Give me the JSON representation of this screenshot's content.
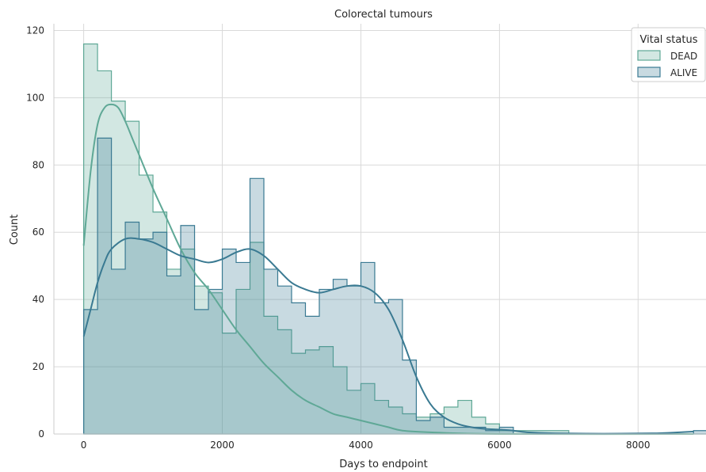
{
  "chart_data": {
    "type": "histogram",
    "title": "Colorectal tumours",
    "xlabel": "Days to endpoint",
    "ylabel": "Count",
    "xlim": [
      -430,
      8980
    ],
    "ylim": [
      0,
      122
    ],
    "xticks": [
      0,
      2000,
      4000,
      6000,
      8000
    ],
    "yticks": [
      0,
      20,
      40,
      60,
      80,
      100,
      120
    ],
    "bin_width": 200,
    "x_start": 0,
    "grid": true,
    "legend": {
      "title": "Vital status",
      "placement": "top-right"
    },
    "series": [
      {
        "name": "DEAD",
        "color": "#5fa896",
        "values": [
          116,
          108,
          99,
          93,
          77,
          66,
          49,
          55,
          44,
          42,
          30,
          43,
          57,
          35,
          31,
          24,
          25,
          26,
          20,
          13,
          15,
          10,
          8,
          6,
          5,
          6,
          8,
          10,
          5,
          3,
          1,
          1,
          1,
          1,
          1,
          0,
          0,
          0,
          0,
          0,
          0,
          0,
          0,
          0,
          0
        ],
        "kde": [
          [
            0,
            56
          ],
          [
            100,
            78
          ],
          [
            200,
            92
          ],
          [
            300,
            97
          ],
          [
            400,
            98
          ],
          [
            500,
            97
          ],
          [
            600,
            93
          ],
          [
            700,
            88
          ],
          [
            800,
            83
          ],
          [
            1000,
            73
          ],
          [
            1200,
            64
          ],
          [
            1400,
            55
          ],
          [
            1600,
            48
          ],
          [
            1800,
            43
          ],
          [
            2000,
            37
          ],
          [
            2200,
            31
          ],
          [
            2400,
            26
          ],
          [
            2600,
            21
          ],
          [
            2800,
            17
          ],
          [
            3000,
            13
          ],
          [
            3200,
            10
          ],
          [
            3400,
            8
          ],
          [
            3600,
            6
          ],
          [
            3800,
            5
          ],
          [
            4000,
            4
          ],
          [
            4200,
            3
          ],
          [
            4400,
            2
          ],
          [
            4600,
            1
          ],
          [
            5000,
            0.5
          ],
          [
            6000,
            0
          ],
          [
            8800,
            0
          ]
        ]
      },
      {
        "name": "ALIVE",
        "color": "#3a7a92",
        "values": [
          37,
          88,
          49,
          63,
          58,
          60,
          47,
          62,
          37,
          43,
          55,
          51,
          76,
          49,
          44,
          39,
          35,
          43,
          46,
          44,
          51,
          39,
          40,
          22,
          4,
          5,
          2,
          2,
          2,
          1,
          2,
          0,
          0,
          0,
          0,
          0,
          0,
          0,
          0,
          0,
          0,
          0,
          0,
          0,
          1
        ],
        "kde": [
          [
            0,
            29
          ],
          [
            100,
            37
          ],
          [
            200,
            45
          ],
          [
            300,
            51
          ],
          [
            400,
            55
          ],
          [
            600,
            58
          ],
          [
            800,
            58
          ],
          [
            1000,
            57
          ],
          [
            1200,
            55
          ],
          [
            1400,
            53
          ],
          [
            1600,
            52
          ],
          [
            1800,
            51
          ],
          [
            2000,
            52
          ],
          [
            2200,
            54
          ],
          [
            2400,
            55
          ],
          [
            2600,
            53
          ],
          [
            2800,
            49
          ],
          [
            3000,
            45
          ],
          [
            3200,
            43
          ],
          [
            3400,
            42
          ],
          [
            3600,
            43
          ],
          [
            3800,
            44
          ],
          [
            4000,
            44
          ],
          [
            4200,
            42
          ],
          [
            4400,
            37
          ],
          [
            4600,
            28
          ],
          [
            4800,
            17
          ],
          [
            5000,
            9
          ],
          [
            5200,
            5
          ],
          [
            5400,
            3
          ],
          [
            5600,
            2
          ],
          [
            5800,
            1.5
          ],
          [
            6000,
            1.3
          ],
          [
            6200,
            1
          ],
          [
            6400,
            0.5
          ],
          [
            6800,
            0.2
          ],
          [
            7500,
            0.1
          ],
          [
            8200,
            0.2
          ],
          [
            8600,
            0.5
          ],
          [
            8800,
            0.7
          ]
        ]
      }
    ]
  }
}
